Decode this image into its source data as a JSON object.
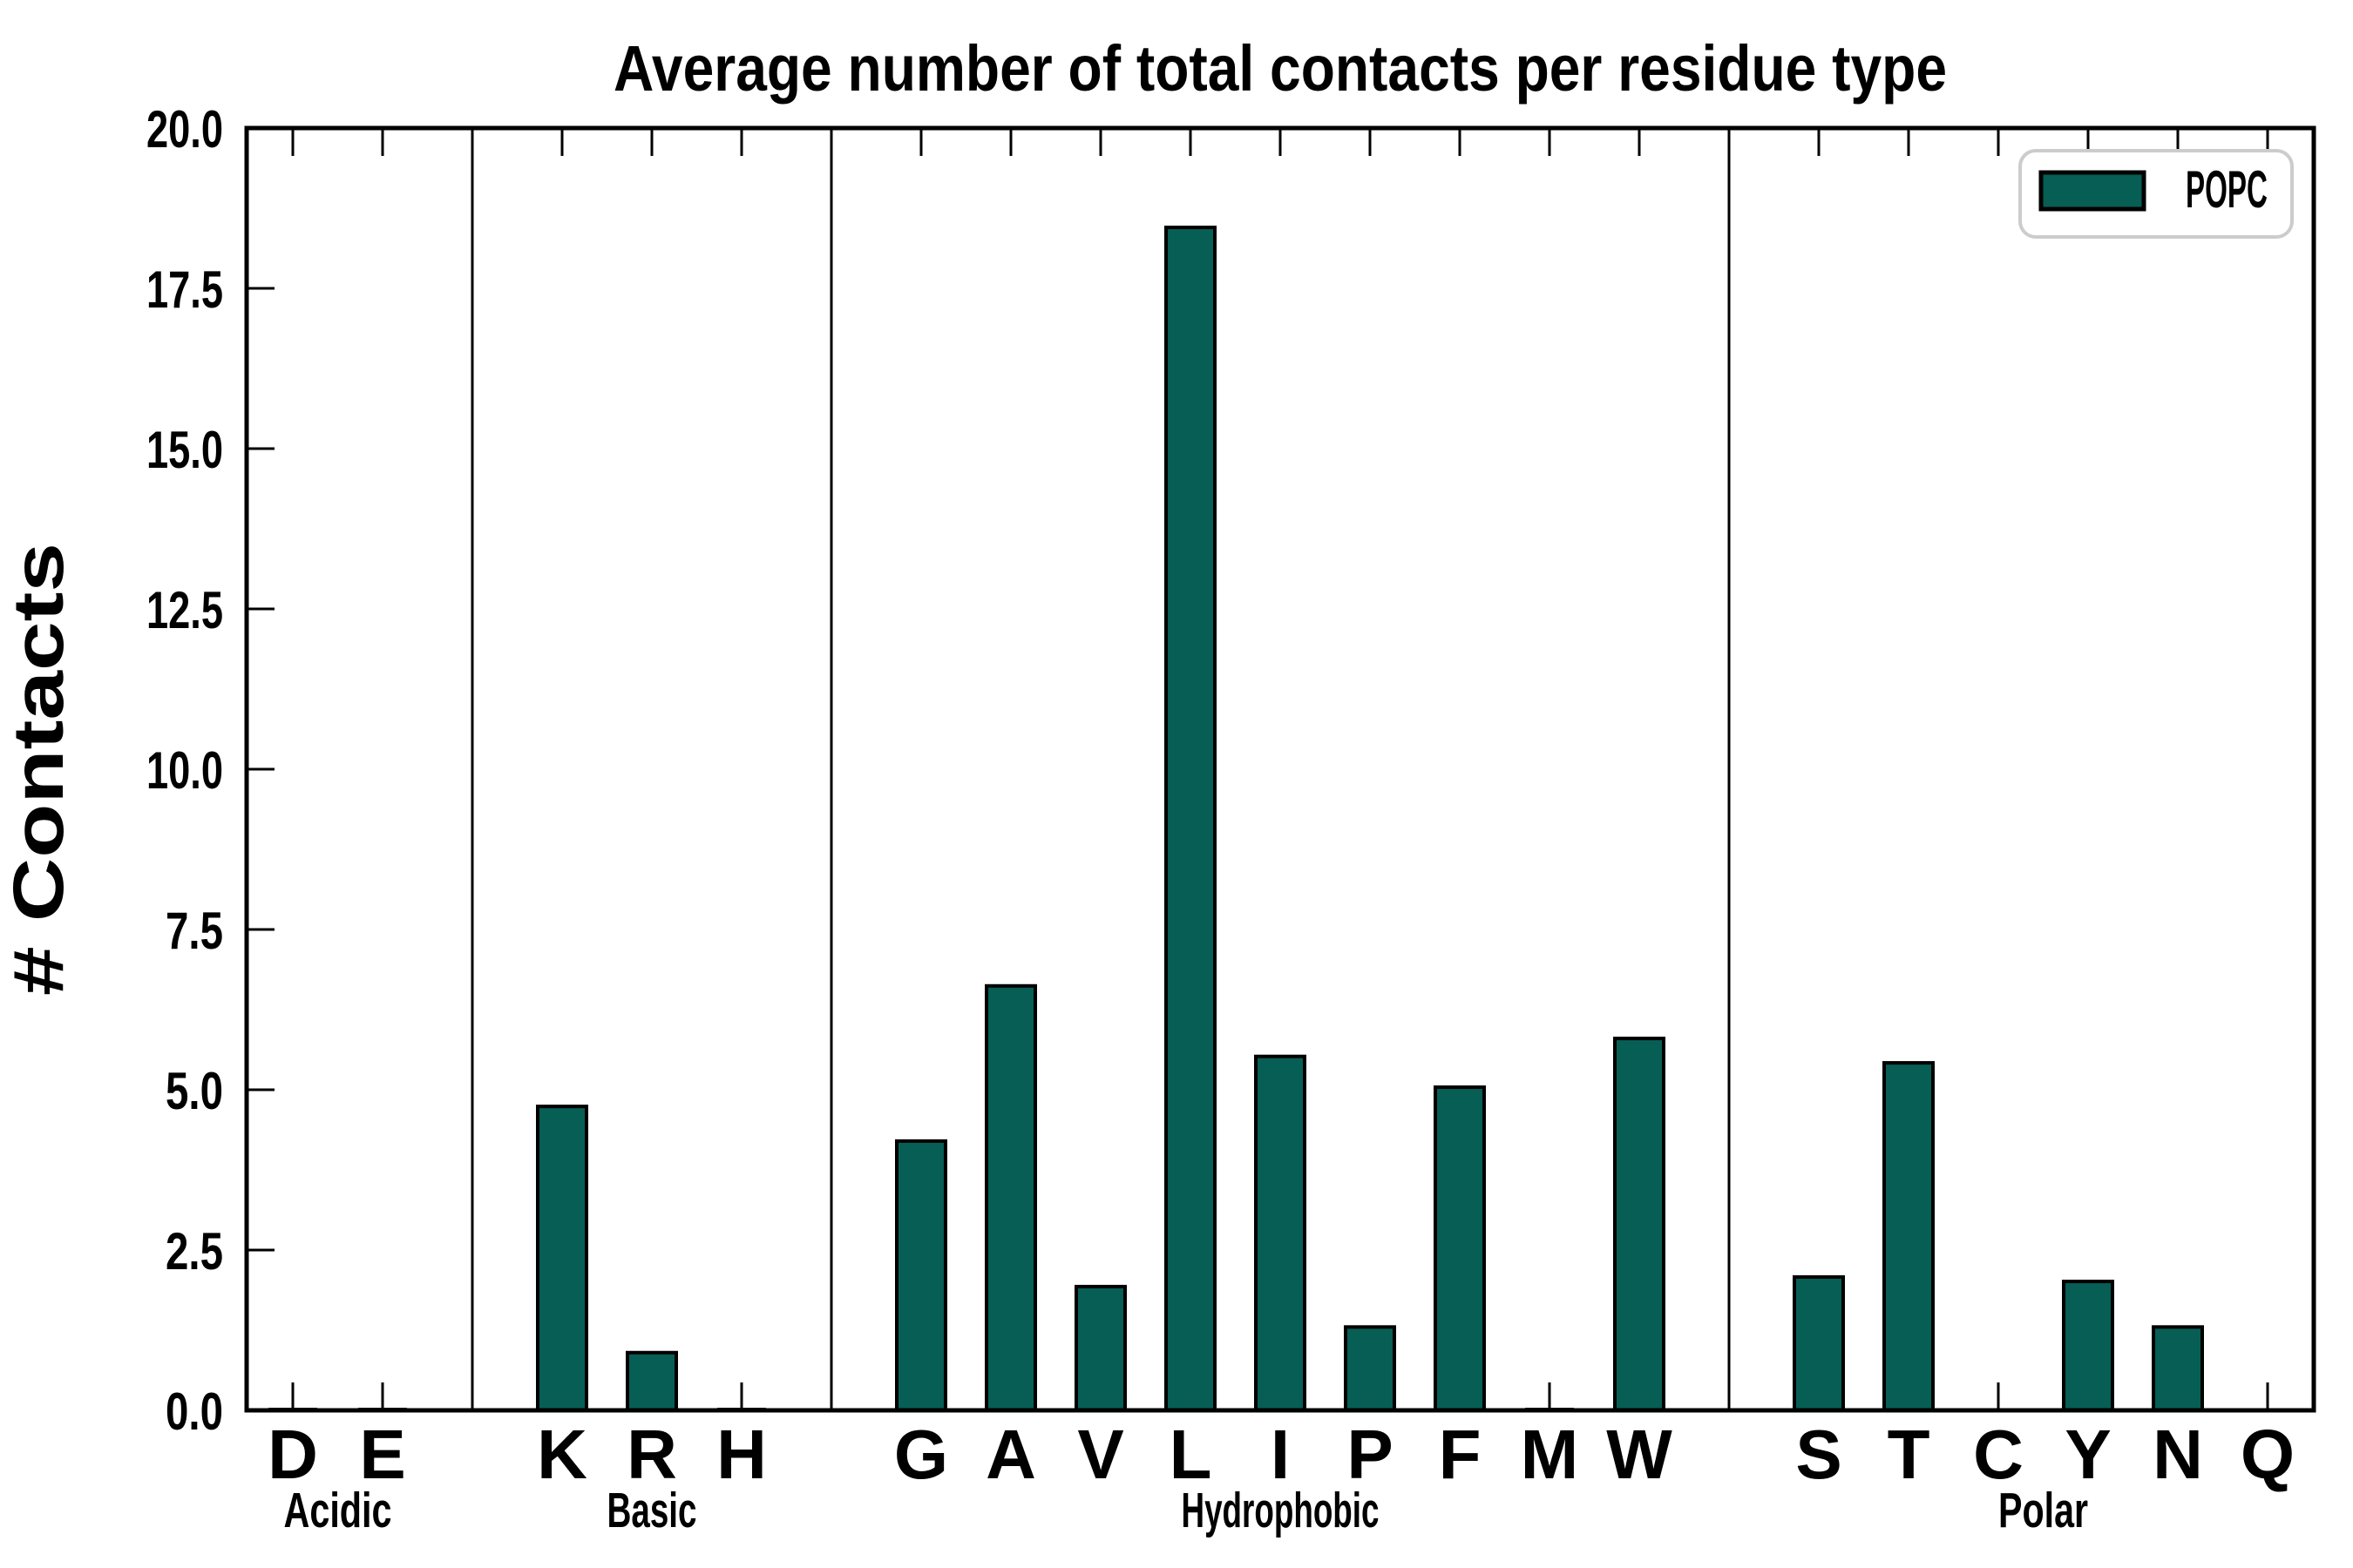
{
  "chart_data": {
    "type": "bar",
    "title": "Average number of total contacts per residue type",
    "xlabel": "",
    "ylabel": "# Contacts",
    "ylim": [
      0,
      20
    ],
    "ytick_labels": [
      "0.0",
      "2.5",
      "5.0",
      "7.5",
      "10.0",
      "12.5",
      "15.0",
      "17.5",
      "20.0"
    ],
    "grid": false,
    "legend": {
      "label": "POPC",
      "position": "upper right"
    },
    "colors": {
      "bar_fill": "#075E54",
      "bar_edge": "#000000",
      "legend_border": "#CCCCCC",
      "axis": "#000000"
    },
    "categories": [
      "D",
      "E",
      "K",
      "R",
      "H",
      "G",
      "A",
      "V",
      "L",
      "I",
      "P",
      "F",
      "M",
      "W",
      "S",
      "T",
      "C",
      "Y",
      "N",
      "Q"
    ],
    "values": [
      0.04,
      0.04,
      4.74,
      0.9,
      0.04,
      4.2,
      6.62,
      1.93,
      18.45,
      5.52,
      1.3,
      5.04,
      0.04,
      5.8,
      2.08,
      5.42,
      0.0,
      2.01,
      1.3,
      0.0
    ],
    "groups": [
      {
        "label": "Acidic",
        "residues": [
          {
            "code": "D",
            "value": 0.04
          },
          {
            "code": "E",
            "value": 0.04
          }
        ]
      },
      {
        "label": "Basic",
        "residues": [
          {
            "code": "K",
            "value": 4.74
          },
          {
            "code": "R",
            "value": 0.9
          },
          {
            "code": "H",
            "value": 0.04
          }
        ]
      },
      {
        "label": "Hydrophobic",
        "residues": [
          {
            "code": "G",
            "value": 4.2
          },
          {
            "code": "A",
            "value": 6.62
          },
          {
            "code": "V",
            "value": 1.93
          },
          {
            "code": "L",
            "value": 18.45
          },
          {
            "code": "I",
            "value": 5.52
          },
          {
            "code": "P",
            "value": 1.3
          },
          {
            "code": "F",
            "value": 5.04
          },
          {
            "code": "M",
            "value": 0.04
          },
          {
            "code": "W",
            "value": 5.8
          }
        ]
      },
      {
        "label": "Polar",
        "residues": [
          {
            "code": "S",
            "value": 2.08
          },
          {
            "code": "T",
            "value": 5.42
          },
          {
            "code": "C",
            "value": 0.0
          },
          {
            "code": "Y",
            "value": 2.01
          },
          {
            "code": "N",
            "value": 1.3
          },
          {
            "code": "Q",
            "value": 0.0
          }
        ]
      }
    ]
  }
}
